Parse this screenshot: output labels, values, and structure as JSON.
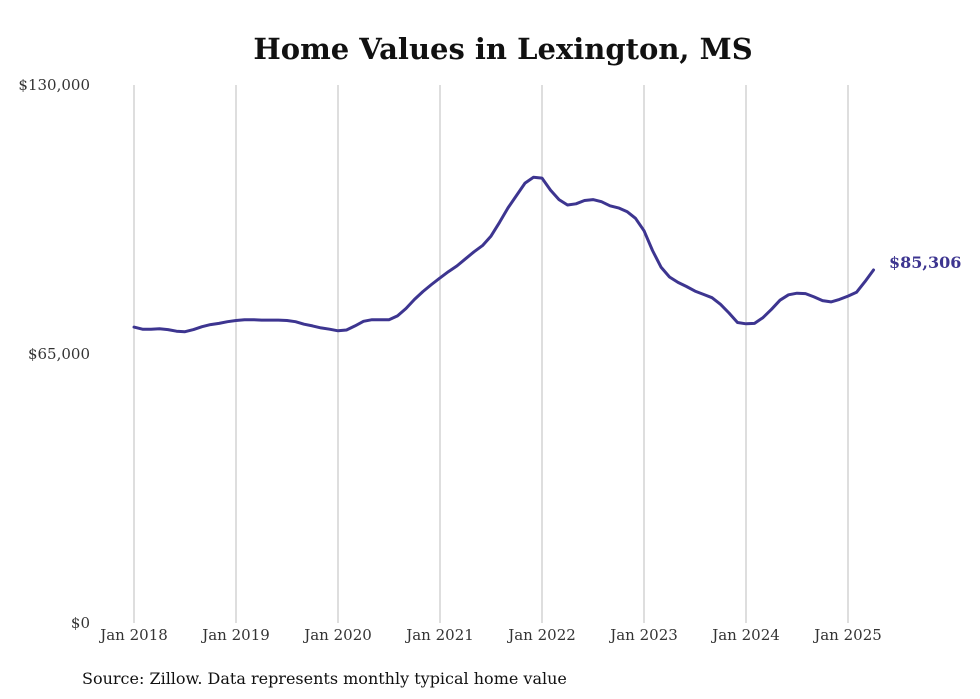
{
  "chart_data": {
    "type": "line",
    "title": "Home Values in Lexington, MS",
    "xlabel": "",
    "ylabel": "",
    "ylim": [
      0,
      130000
    ],
    "yticks": [
      "$0",
      "$65,000",
      "$130,000"
    ],
    "ytick_values": [
      0,
      65000,
      130000
    ],
    "xticks": [
      "Jan 2018",
      "Jan 2019",
      "Jan 2020",
      "Jan 2021",
      "Jan 2022",
      "Jan 2023",
      "Jan 2024",
      "Jan 2025"
    ],
    "xtick_values": [
      "2018-01",
      "2019-01",
      "2020-01",
      "2021-01",
      "2022-01",
      "2023-01",
      "2024-01",
      "2025-01"
    ],
    "grid": "vertical",
    "line_color": "#3d3590",
    "end_label": "$85,306",
    "series": [
      {
        "x": [
          "2018-01",
          "2018-02",
          "2018-03",
          "2018-04",
          "2018-05",
          "2018-06",
          "2018-07",
          "2018-08",
          "2018-09",
          "2018-10",
          "2018-11",
          "2018-12",
          "2019-01",
          "2019-02",
          "2019-03",
          "2019-04",
          "2019-05",
          "2019-06",
          "2019-07",
          "2019-08",
          "2019-09",
          "2019-10",
          "2019-11",
          "2019-12",
          "2020-01",
          "2020-02",
          "2020-03",
          "2020-04",
          "2020-05",
          "2020-06",
          "2020-07",
          "2020-08",
          "2020-09",
          "2020-10",
          "2020-11",
          "2020-12",
          "2021-01",
          "2021-02",
          "2021-03",
          "2021-04",
          "2021-05",
          "2021-06",
          "2021-07",
          "2021-08",
          "2021-09",
          "2021-10",
          "2021-11",
          "2021-12",
          "2022-01",
          "2022-02",
          "2022-03",
          "2022-04",
          "2022-05",
          "2022-06",
          "2022-07",
          "2022-08",
          "2022-09",
          "2022-10",
          "2022-11",
          "2022-12",
          "2023-01",
          "2023-02",
          "2023-03",
          "2023-04",
          "2023-05",
          "2023-06",
          "2023-07",
          "2023-08",
          "2023-09",
          "2023-10",
          "2023-11",
          "2023-12",
          "2024-01",
          "2024-02",
          "2024-03",
          "2024-04",
          "2024-05",
          "2024-06",
          "2024-07",
          "2024-08",
          "2024-09",
          "2024-10",
          "2024-11",
          "2024-12",
          "2025-01",
          "2025-02",
          "2025-03",
          "2025-04"
        ],
        "values": [
          71500,
          71000,
          71000,
          71100,
          70900,
          70500,
          70400,
          70900,
          71600,
          72100,
          72400,
          72800,
          73100,
          73300,
          73300,
          73200,
          73200,
          73200,
          73100,
          72800,
          72200,
          71800,
          71300,
          71000,
          70600,
          70800,
          71800,
          72900,
          73300,
          73300,
          73300,
          74200,
          76000,
          78200,
          80100,
          81800,
          83400,
          84900,
          86300,
          88000,
          89700,
          91200,
          93500,
          96800,
          100300,
          103300,
          106300,
          107700,
          107500,
          104600,
          102300,
          101000,
          101300,
          102100,
          102300,
          101800,
          100800,
          100300,
          99400,
          97800,
          94800,
          90000,
          86000,
          83600,
          82300,
          81300,
          80200,
          79400,
          78600,
          77000,
          74900,
          72600,
          72300,
          72400,
          73800,
          75800,
          78000,
          79300,
          79700,
          79600,
          78800,
          77900,
          77600,
          78200,
          79000,
          79900,
          82500,
          85306
        ]
      }
    ],
    "source": "Source: Zillow. Data represents monthly typical home value"
  }
}
